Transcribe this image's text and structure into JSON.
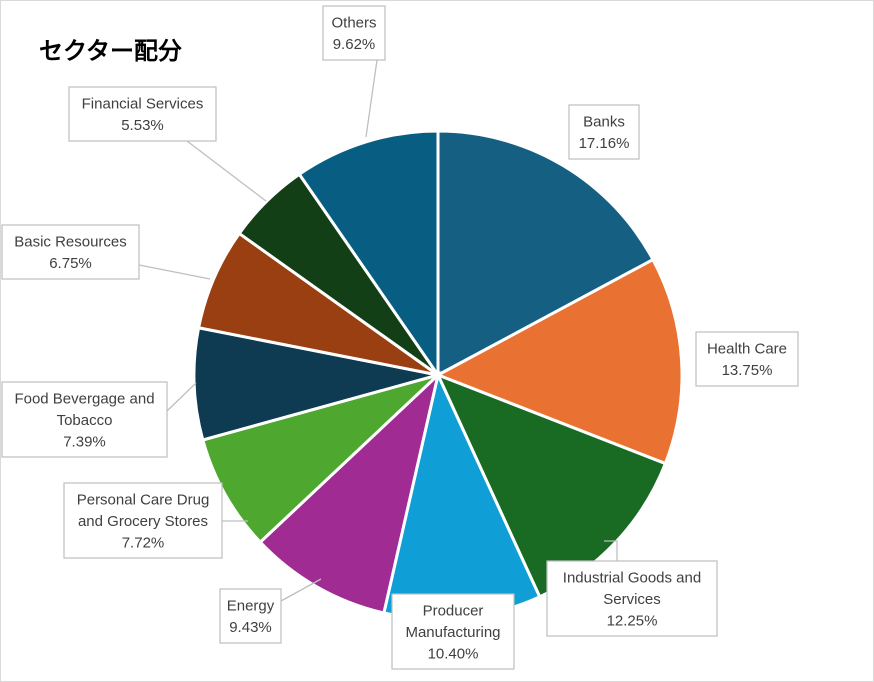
{
  "chart_data": {
    "type": "pie",
    "title": "セクター配分",
    "start_angle_deg": 0,
    "direction": "clockwise",
    "slices": [
      {
        "name": "Banks",
        "value": 17.16,
        "value_label": "17.16%",
        "color": "#156082",
        "label_lines": [
          "Banks"
        ]
      },
      {
        "name": "Health Care",
        "value": 13.75,
        "value_label": "13.75%",
        "color": "#E97132",
        "label_lines": [
          "Health Care"
        ]
      },
      {
        "name": "Industrial Goods and Services",
        "value": 12.25,
        "value_label": "12.25%",
        "color": "#196B24",
        "label_lines": [
          "Industrial Goods and",
          "Services"
        ]
      },
      {
        "name": "Producer Manufacturing",
        "value": 10.4,
        "value_label": "10.40%",
        "color": "#0F9ED5",
        "label_lines": [
          "Producer",
          "Manufacturing"
        ]
      },
      {
        "name": "Energy",
        "value": 9.43,
        "value_label": "9.43%",
        "color": "#A02B93",
        "label_lines": [
          "Energy"
        ]
      },
      {
        "name": "Personal Care Drug and Grocery Stores",
        "value": 7.72,
        "value_label": "7.72%",
        "color": "#4EA72E",
        "label_lines": [
          "Personal Care Drug",
          "and Grocery Stores"
        ]
      },
      {
        "name": "Food Bevergage and Tobacco",
        "value": 7.39,
        "value_label": "7.39%",
        "color": "#0E3A52",
        "label_lines": [
          "Food Bevergage and",
          "Tobacco"
        ]
      },
      {
        "name": "Basic Resources",
        "value": 6.75,
        "value_label": "6.75%",
        "color": "#9A3F11",
        "label_lines": [
          "Basic Resources"
        ]
      },
      {
        "name": "Financial Services",
        "value": 5.53,
        "value_label": "5.53%",
        "color": "#123F16",
        "label_lines": [
          "Financial Services"
        ]
      },
      {
        "name": "Others",
        "value": 9.62,
        "value_label": "9.62%",
        "color": "#085E82",
        "label_lines": [
          "Others"
        ]
      }
    ]
  }
}
